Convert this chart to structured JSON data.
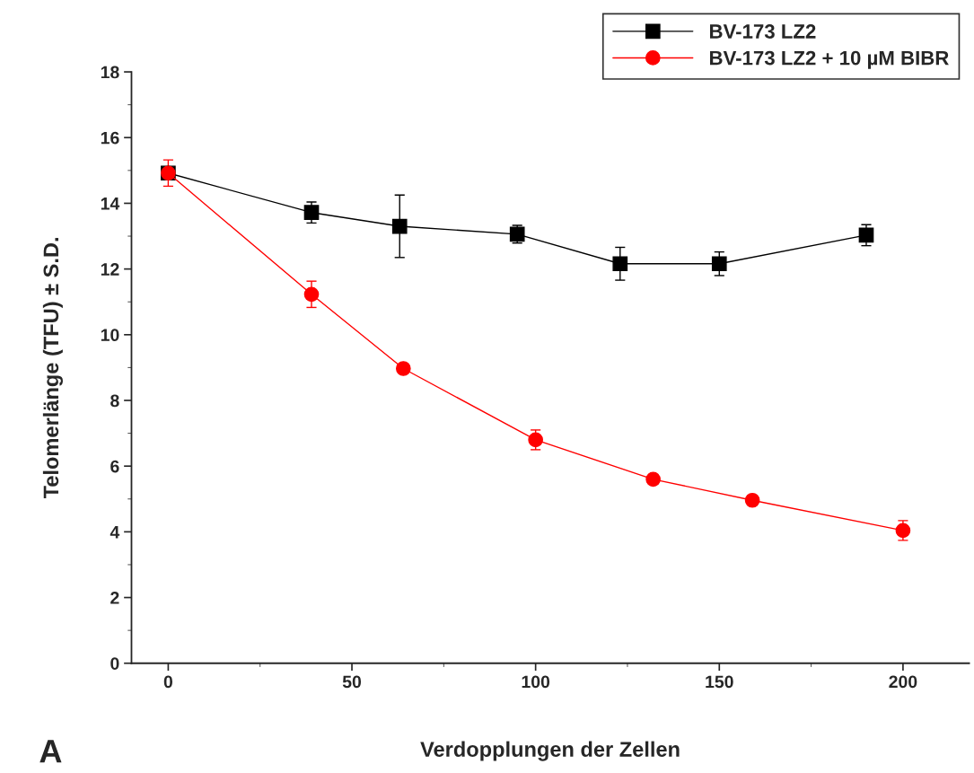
{
  "chart_data": {
    "type": "line",
    "xlabel": "Verdopplungen der Zellen",
    "ylabel": "Telomerlänge (TFU) ± S.D.",
    "series": [
      {
        "name": "BV-173 LZ2",
        "color": "#000000",
        "marker": "square",
        "x": [
          0,
          39,
          63,
          95,
          123,
          150,
          190
        ],
        "values": [
          14.92,
          13.72,
          13.3,
          13.06,
          12.16,
          12.16,
          13.03
        ],
        "errors": [
          null,
          0.32,
          0.95,
          0.27,
          0.5,
          0.36,
          0.32
        ]
      },
      {
        "name": "BV-173 LZ2 + 10 µM BIBR",
        "color": "#ff0000",
        "marker": "circle",
        "x": [
          0,
          39,
          64,
          100,
          132,
          159,
          200
        ],
        "values": [
          14.92,
          11.23,
          8.97,
          6.8,
          5.6,
          4.96,
          4.04
        ],
        "errors": [
          0.4,
          0.4,
          null,
          0.3,
          0.15,
          null,
          0.3
        ]
      }
    ],
    "xlim": [
      -10,
      218
    ],
    "xticks": [
      0,
      50,
      100,
      150,
      200
    ],
    "ylim": [
      0,
      18
    ],
    "yticks": [
      0,
      2,
      4,
      6,
      8,
      10,
      12,
      14,
      16,
      18
    ],
    "grid": false,
    "legend": "top right",
    "line_style": "solid",
    "annotations": [
      "A"
    ]
  }
}
